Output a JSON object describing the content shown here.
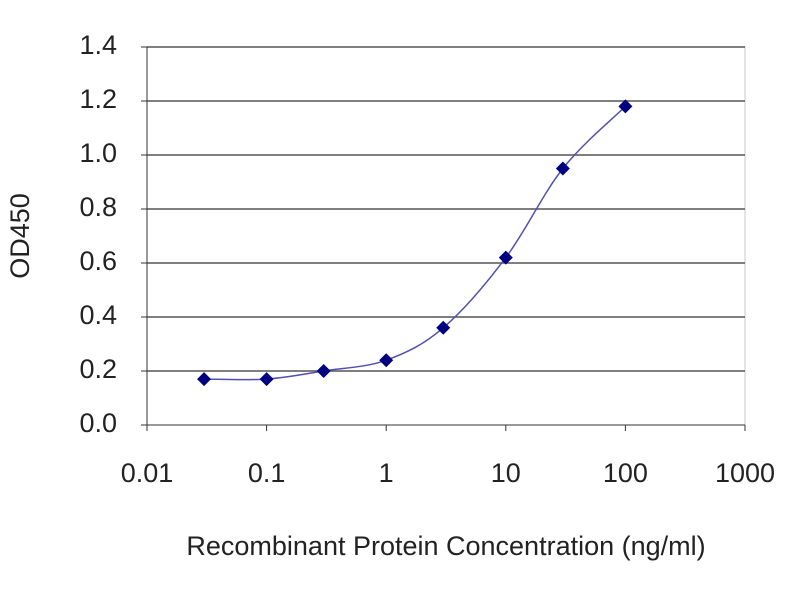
{
  "chart_data": {
    "type": "line",
    "x_label": "Recombinant Protein Concentration (ng/ml)",
    "y_label": "OD450",
    "x": [
      0.03,
      0.1,
      0.3,
      1,
      3,
      10,
      30,
      100
    ],
    "values": [
      0.17,
      0.17,
      0.2,
      0.24,
      0.36,
      0.62,
      0.95,
      1.18
    ],
    "color": "#000080",
    "line_color": "#5050b0",
    "x_log": true,
    "xlim": [
      0.01,
      1000
    ],
    "xticks": [
      0.01,
      0.1,
      1,
      10,
      100,
      1000
    ],
    "ylim": [
      0,
      1.4
    ],
    "yticks": [
      {
        "value": 0,
        "label": "0.0"
      },
      0.2,
      0.4,
      0.6,
      0.8,
      {
        "value": 1,
        "label": "1.0"
      },
      1.2,
      1.4
    ],
    "grid": true
  }
}
